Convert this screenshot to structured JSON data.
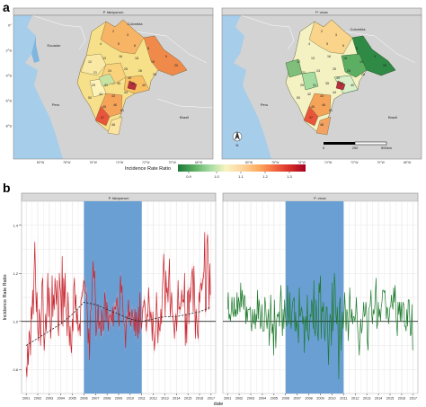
{
  "panel_labels": {
    "a": "a",
    "b": "b"
  },
  "map_panels": [
    {
      "title": "P. falciparum"
    },
    {
      "title": "P. vivax"
    }
  ],
  "map_axes": {
    "lat_labels": [
      "0°",
      "2°S",
      "4°S",
      "6°S",
      "8°S"
    ],
    "lon_labels": [
      "80°W",
      "78°W",
      "76°W",
      "74°W",
      "72°W",
      "70°W",
      "68°W"
    ]
  },
  "map_text": {
    "countries_left": [
      "Ecuador",
      "Colombia",
      "Peru",
      "Brazil"
    ],
    "countries_right": [
      "Colombia",
      "Peru",
      "Brazil"
    ],
    "scalebar": [
      "0",
      "250",
      "500km"
    ],
    "north_arrow": "N"
  },
  "map_district_labels": [
    "2",
    "3",
    "4",
    "5",
    "6",
    "8",
    "9",
    "12",
    "13",
    "16",
    "18",
    "19",
    "20",
    "21",
    "24",
    "25",
    "26",
    "28",
    "29",
    "31",
    "35",
    "38",
    "40",
    "42",
    "43",
    "44",
    "45",
    "46",
    "47",
    "48",
    "49",
    "50",
    "51"
  ],
  "colorbar": {
    "title": "Incidence Rate Ratio",
    "ticks": [
      "0.9",
      "1.0",
      "1.1",
      "1.2",
      "1.3"
    ],
    "colors": [
      "#1b7837",
      "#5aae61",
      "#a6dba0",
      "#f7f4c3",
      "#fdd49e",
      "#fdae61",
      "#f46d43",
      "#d73027",
      "#a50026"
    ]
  },
  "colors": {
    "falciparum": "#c8232c",
    "falciparum_band": "#f0a0a4",
    "vivax": "#1e7b2e",
    "shade": "#6a9fd4",
    "panel_bg": "#ffffff",
    "strip": "#d9d9d9",
    "land": "#d3d3d3",
    "sea": "#a6cdea"
  },
  "chart_data": {
    "type": "line",
    "facets": [
      "P. falciparum",
      "P. vivax"
    ],
    "xlabel": "date",
    "ylabel": "Incidence Rate Ratio",
    "x_ticks": [
      "2001",
      "2002",
      "2003",
      "2004",
      "2005",
      "2006",
      "2007",
      "2008",
      "2009",
      "2010",
      "2011",
      "2012",
      "2013",
      "2014",
      "2015",
      "2016",
      "2017"
    ],
    "y_ticks": [
      "0.8",
      "1.0",
      "1.2",
      "1.4"
    ],
    "xlim": [
      2000.6,
      2017.4
    ],
    "ylim": [
      0.7,
      1.5
    ],
    "reference_y": 1.0,
    "shaded_period": [
      2006.0,
      2011.0
    ],
    "series": [
      {
        "facet": "P. falciparum",
        "kind": "weekly",
        "values": [
          0.81,
          0.77,
          0.9,
          0.82,
          0.96,
          0.94,
          0.86,
          1.06,
          1.01,
          1.13,
          1.03,
          1.21,
          1.33,
          1.18,
          1.04,
          1.12,
          0.97,
          0.92,
          1.05,
          1.01,
          0.9,
          1.02,
          1.16,
          1.18,
          0.98,
          0.88,
          0.94,
          1.03,
          0.96,
          1.08,
          1.2,
          1.02,
          1.14,
          1.04,
          0.93,
          0.99,
          1.19,
          1.02,
          1.11,
          1.05,
          1.18,
          1.13,
          1.07,
          1.17,
          0.99,
          0.94,
          1.2,
          1.14,
          1.12,
          0.99,
          1.27,
          0.98,
          1.18,
          1.06,
          1.2,
          1.07,
          1.02,
          0.94,
          1.12,
          1.03,
          0.9,
          0.98,
          0.9,
          0.87,
          1.01,
          0.96,
          1.14,
          1.18,
          1.05,
          1.11,
          0.99,
          1.05,
          0.96,
          0.97,
          0.99,
          0.94,
          1.09,
          1.1,
          1.11,
          1.14,
          1.17,
          1.16,
          1.12,
          1.12,
          1.11,
          1.03,
          0.91,
          0.97,
          0.84,
          1.03,
          1.05,
          1.08,
          1.17,
          1.25,
          1.18,
          1.21,
          1.11,
          0.94,
          0.97,
          1.02,
          1.07,
          0.97,
          1.0,
          1.0,
          0.94,
          1.05,
          1.0,
          0.96,
          0.98,
          1.12,
          1.09,
          1.0,
          1.08,
          1.05,
          0.96,
          1.02,
          1.02,
          1.03,
          1.01,
          1.0,
          1.06,
          0.98,
          1.05,
          1.06,
          1.05,
          1.07,
          1.1,
          1.06,
          1.01,
          0.98,
          1.09,
          1.19,
          1.12,
          1.15,
          1.07,
          1.02,
          0.99,
          0.98,
          0.89,
          0.99,
          1.02,
          1.01,
          1.09,
          1.02,
          1.04,
          0.98,
          1.01,
          1.05,
          1.02,
          1.01,
          0.96,
          1.05,
          0.94,
          1.04,
          0.98,
          0.93,
          1.06,
          0.95,
          1.12,
          1.02,
          0.97,
          1.0,
          1.06,
          1.06,
          1.09,
          1.07,
          1.0,
          0.96,
          1.03,
          1.02,
          1.14,
          1.07,
          1.0,
          1.04,
          1.02,
          0.92,
          1.04,
          0.96,
          0.88,
          0.92,
          0.96,
          1.12,
          1.03,
          0.91,
          1.01,
          0.97,
          0.96,
          1.05,
          0.99,
          1.12,
          1.2,
          1.28,
          1.17,
          1.02,
          1.21,
          1.12,
          1.14,
          1.08,
          1.18,
          1.26,
          1.02,
          1.07,
          1.12,
          1.04,
          1.01,
          0.99,
          0.93,
          1.0,
          1.03,
          0.96,
          1.04,
          1.17,
          1.05,
          1.06,
          1.05,
          1.07,
          1.13,
          1.08,
          1.09,
          1.08,
          1.2,
          0.9,
          1.03,
          0.91,
          1.12,
          1.13,
          0.99,
          1.14,
          1.08,
          1.15,
          1.2,
          1.22,
          1.04,
          1.23,
          1.1,
          0.93,
          1.05,
          1.0,
          0.95,
          0.93,
          1.12,
          1.08,
          1.15,
          1.16,
          1.13,
          1.17,
          1.18,
          1.21,
          1.37,
          1.04,
          1.05,
          1.33,
          1.36,
          1.22,
          1.05,
          1.24,
          1.11
        ]
      },
      {
        "facet": "P. falciparum",
        "kind": "trend",
        "style": "dashed",
        "x": [
          2001.0,
          2002.0,
          2003.0,
          2004.0,
          2005.0,
          2006.0,
          2007.0,
          2008.0,
          2009.0,
          2010.0,
          2011.0,
          2012.0,
          2013.0,
          2014.0,
          2015.0,
          2016.0,
          2017.0
        ],
        "values": [
          0.9,
          0.93,
          0.96,
          0.99,
          1.03,
          1.08,
          1.07,
          1.05,
          1.03,
          1.01,
          1.0,
          1.01,
          1.02,
          1.02,
          1.03,
          1.04,
          1.06
        ]
      },
      {
        "facet": "P. vivax",
        "kind": "weekly",
        "values": [
          1.05,
          1.12,
          1.01,
          1.03,
          1.0,
          1.04,
          1.1,
          1.04,
          1.02,
          1.1,
          1.02,
          1.05,
          1.02,
          1.12,
          1.03,
          1.1,
          1.08,
          1.04,
          1.16,
          1.06,
          1.13,
          1.09,
          1.05,
          1.11,
          1.1,
          0.99,
          1.06,
          1.0,
          1.05,
          1.05,
          1.05,
          1.06,
          0.99,
          0.96,
          1.05,
          1.0,
          0.99,
          1.05,
          0.97,
          1.03,
          1.0,
          1.13,
          1.01,
          1.09,
          1.06,
          0.97,
          0.99,
          1.07,
          0.96,
          0.96,
          0.96,
          1.1,
          1.07,
          1.01,
          0.97,
          1.01,
          1.05,
          0.9,
          0.98,
          1.11,
          0.99,
          0.95,
          0.99,
          0.86,
          1.09,
          0.99,
          0.89,
          1.0,
          1.03,
          1.02,
          1.04,
          0.98,
          1.08,
          1.15,
          1.04,
          0.94,
          1.05,
          0.97,
          1.09,
          1.02,
          0.99,
          0.98,
          1.15,
          1.04,
          0.99,
          1.12,
          1.01,
          0.97,
          1.04,
          1.08,
          1.09,
          1.1,
          0.96,
          1.04,
          0.96,
          1.0,
          0.97,
          0.91,
          1.14,
          1.02,
          1.03,
          1.06,
          1.04,
          0.99,
          1.02,
          0.87,
          1.0,
          1.02,
          0.96,
          1.11,
          0.94,
          0.92,
          0.97,
          1.03,
          1.02,
          1.09,
          1.06,
          0.97,
          1.17,
          0.96,
          0.94,
          1.09,
          1.03,
          0.95,
          0.92,
          1.16,
          1.12,
          1.19,
          0.93,
          1.06,
          1.04,
          1.08,
          0.97,
          0.92,
          0.99,
          1.06,
          1.06,
          0.94,
          0.82,
          0.97,
          1.03,
          1.02,
          0.9,
          1.16,
          0.96,
          1.03,
          1.2,
          1.15,
          1.03,
          0.99,
          1.06,
          0.97,
          0.76,
          1.07,
          1.1,
          0.88,
          0.98,
          1.04,
          0.97,
          1.01,
          1.12,
          1.05,
          0.96,
          1.05,
          1.03,
          0.92,
          1.03,
          1.14,
          1.04,
          1.0,
          1.05,
          0.99,
          1.02,
          1.02,
          1.0,
          1.02,
          1.1,
          1.03,
          0.96,
          0.92,
          0.86,
          0.95,
          1.01,
          0.95,
          0.97,
          1.02,
          1.08,
          1.02,
          1.03,
          1.08,
          1.04,
          0.92,
          0.88,
          1.05,
          1.06,
          1.07,
          1.13,
          1.03,
          0.99,
          1.05,
          1.03,
          1.05,
          1.12,
          1.18,
          0.97,
          0.99,
          1.08,
          1.02,
          1.05,
          1.0,
          1.06,
          1.08,
          1.13,
          1.13,
          1.12,
          1.13,
          1.07,
          1.01,
          1.06,
          1.05,
          0.99,
          1.02,
          1.06,
          1.06,
          1.11,
          1.07,
          1.05,
          1.14,
          1.08,
          1.15,
          1.03,
          0.99,
          0.94,
          1.08,
          1.03,
          1.08,
          1.0,
          1.08,
          1.0,
          1.06,
          1.08,
          1.06,
          0.98,
          0.98,
          0.96,
          1.05,
          0.98,
          1.09,
          1.09,
          1.01,
          0.94,
          0.95,
          1.07,
          0.88
        ]
      }
    ]
  }
}
